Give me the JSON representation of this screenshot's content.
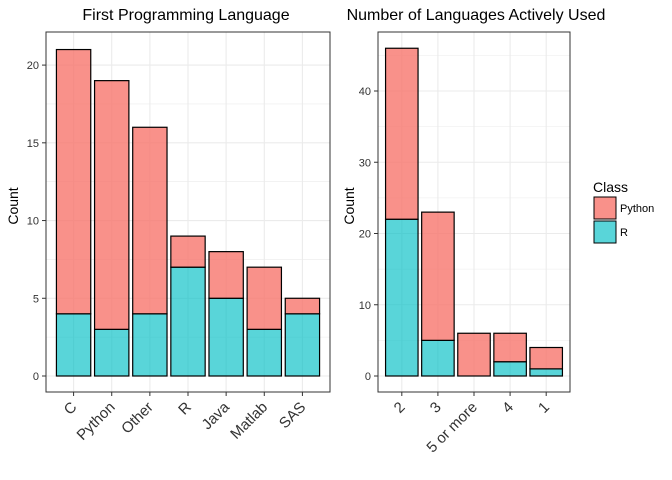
{
  "colors": {
    "python": "#F8766D",
    "r": "#00BFC4",
    "grid": "#ebebeb",
    "border": "#333333"
  },
  "legend": {
    "title": "Class",
    "items": [
      {
        "label": "Python",
        "color": "#F8766D"
      },
      {
        "label": "R",
        "color": "#00BFC4"
      }
    ]
  },
  "chart_data": [
    {
      "type": "bar",
      "stacked": true,
      "title": "First Programming Language",
      "ylabel": "Count",
      "xlabel": "",
      "ylim": [
        0,
        22
      ],
      "yticks": [
        0,
        5,
        10,
        15,
        20
      ],
      "grid": true,
      "categories": [
        "C",
        "Python",
        "Other",
        "R",
        "Java",
        "Matlab",
        "SAS"
      ],
      "series": [
        {
          "name": "R",
          "values": [
            4,
            3,
            4,
            7,
            5,
            3,
            4
          ]
        },
        {
          "name": "Python",
          "values": [
            17,
            16,
            12,
            2,
            3,
            4,
            1
          ]
        }
      ]
    },
    {
      "type": "bar",
      "stacked": true,
      "title": "Number of Languages Actively Used",
      "ylabel": "Count",
      "xlabel": "",
      "ylim": [
        0,
        48
      ],
      "yticks": [
        0,
        10,
        20,
        30,
        40
      ],
      "grid": true,
      "categories": [
        "2",
        "3",
        "5 or more",
        "4",
        "1"
      ],
      "series": [
        {
          "name": "R",
          "values": [
            22,
            5,
            0,
            2,
            1
          ]
        },
        {
          "name": "Python",
          "values": [
            24,
            18,
            6,
            4,
            3
          ]
        }
      ]
    }
  ]
}
